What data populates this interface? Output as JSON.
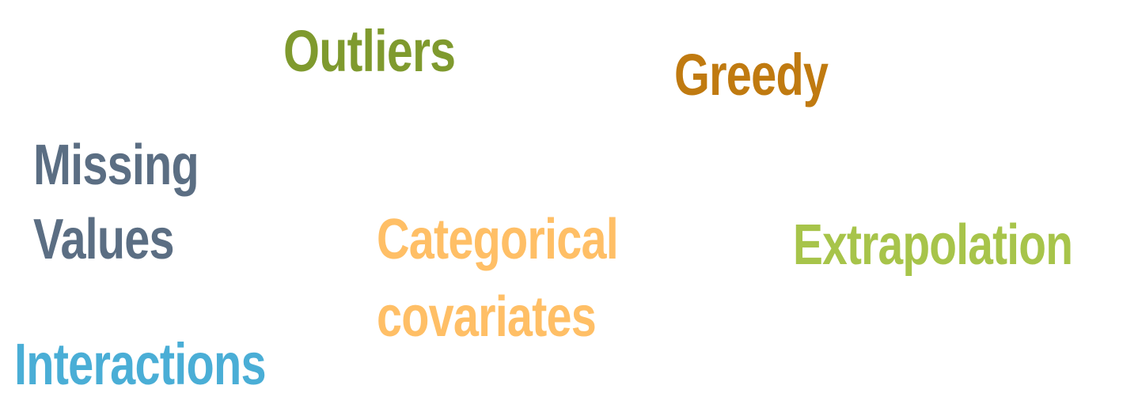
{
  "words": {
    "outliers": {
      "text": "Outliers",
      "color": "#7f9a2e"
    },
    "greedy": {
      "text": "Greedy",
      "color": "#c07a10"
    },
    "missing_values": {
      "lines": [
        "Missing",
        "Values"
      ],
      "color": "#5b6e83"
    },
    "categorical_covariates": {
      "lines": [
        "Categorical",
        "covariates"
      ],
      "color": "#ffbf66"
    },
    "extrapolation": {
      "text": "Extrapolation",
      "color": "#a7c44a"
    },
    "interactions": {
      "text": "Interactions",
      "color": "#4aaed6"
    }
  }
}
